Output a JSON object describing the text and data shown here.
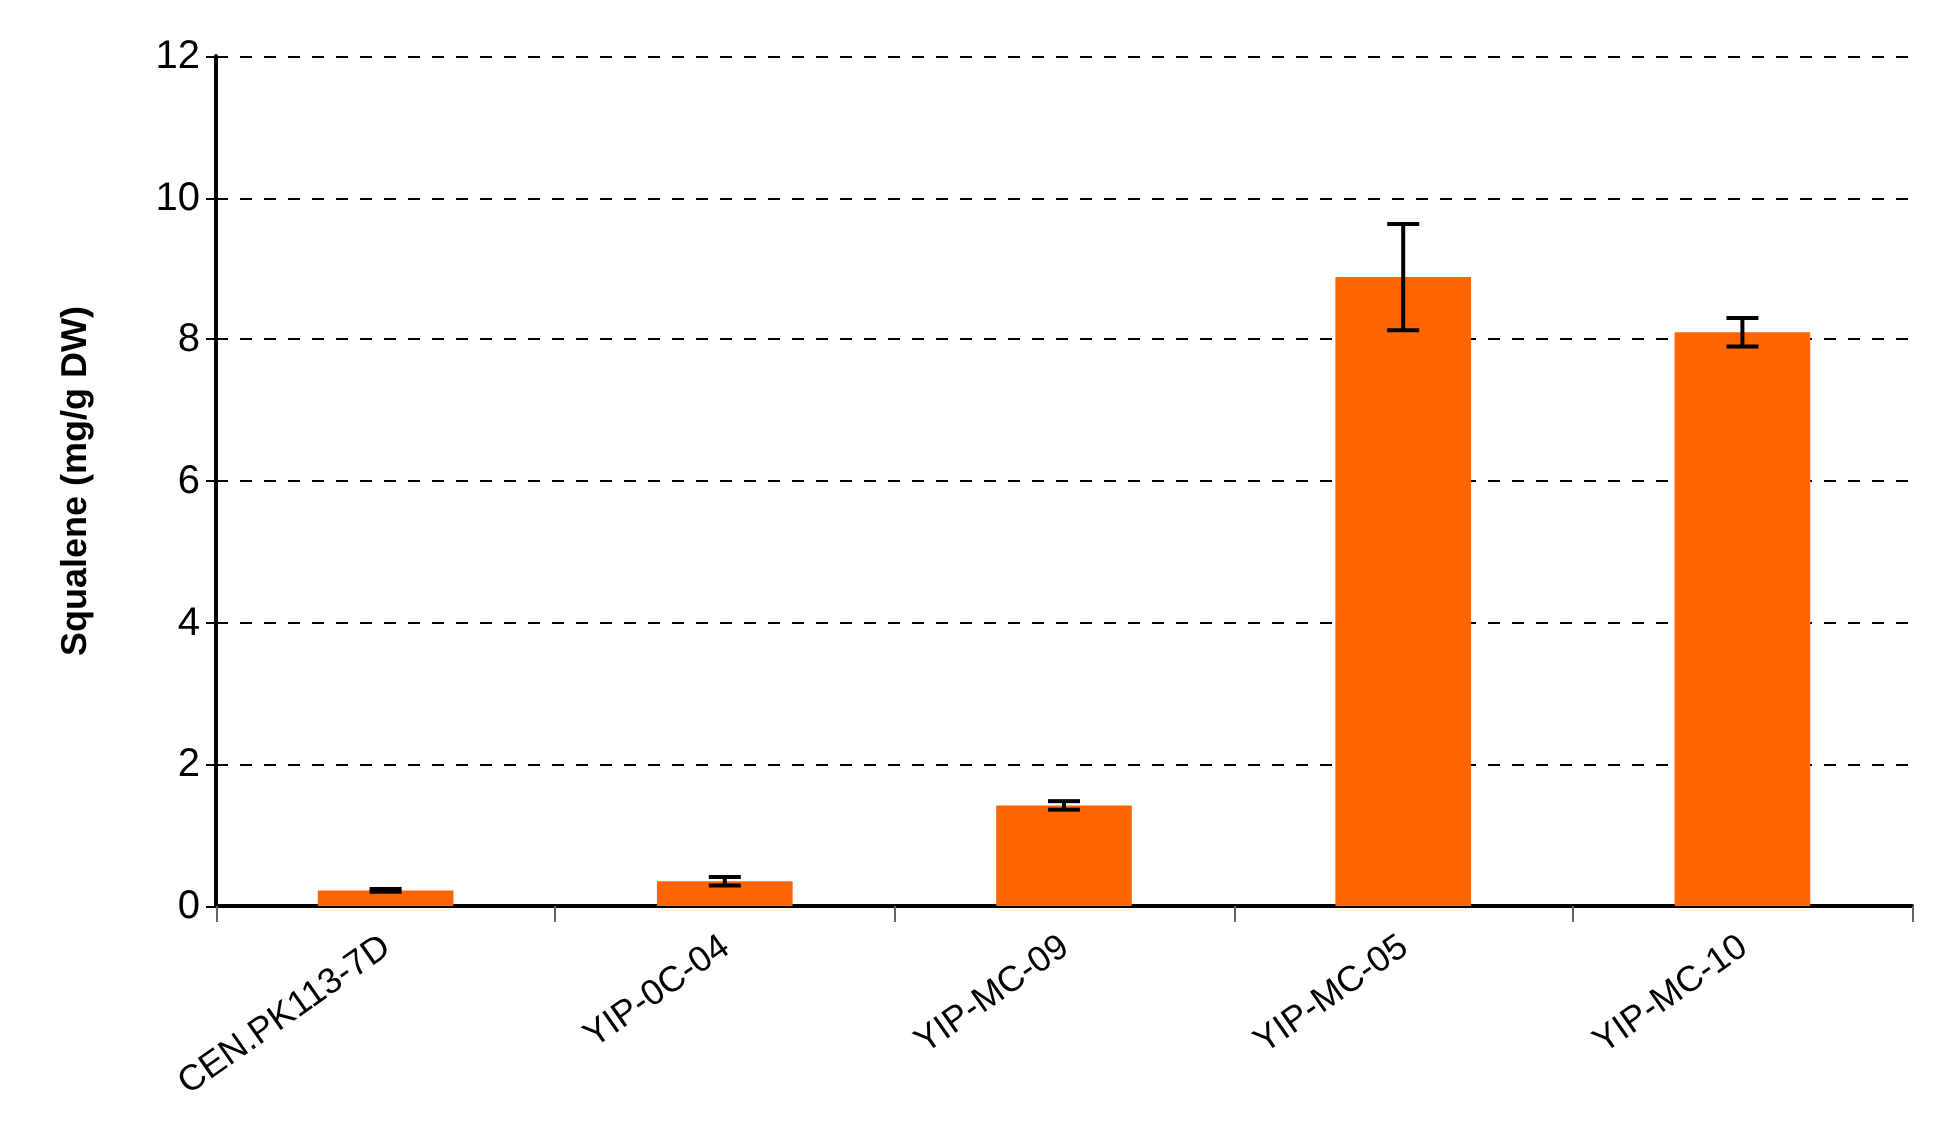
{
  "chart_data": {
    "type": "bar",
    "ylabel": "Squalene (mg/g DW)",
    "categories": [
      "CEN.PK113-7D",
      "YIP-0C-04",
      "YIP-MC-09",
      "YIP-MC-05",
      "YIP-MC-10"
    ],
    "values": [
      0.22,
      0.35,
      1.42,
      8.88,
      8.1
    ],
    "errors": [
      0.02,
      0.06,
      0.06,
      0.75,
      0.2
    ],
    "color": "#ff6600",
    "ylim": [
      0,
      12
    ],
    "yticks": [
      0,
      2,
      4,
      6,
      8,
      10,
      12
    ],
    "grid": "y",
    "line_style": "dashed"
  }
}
